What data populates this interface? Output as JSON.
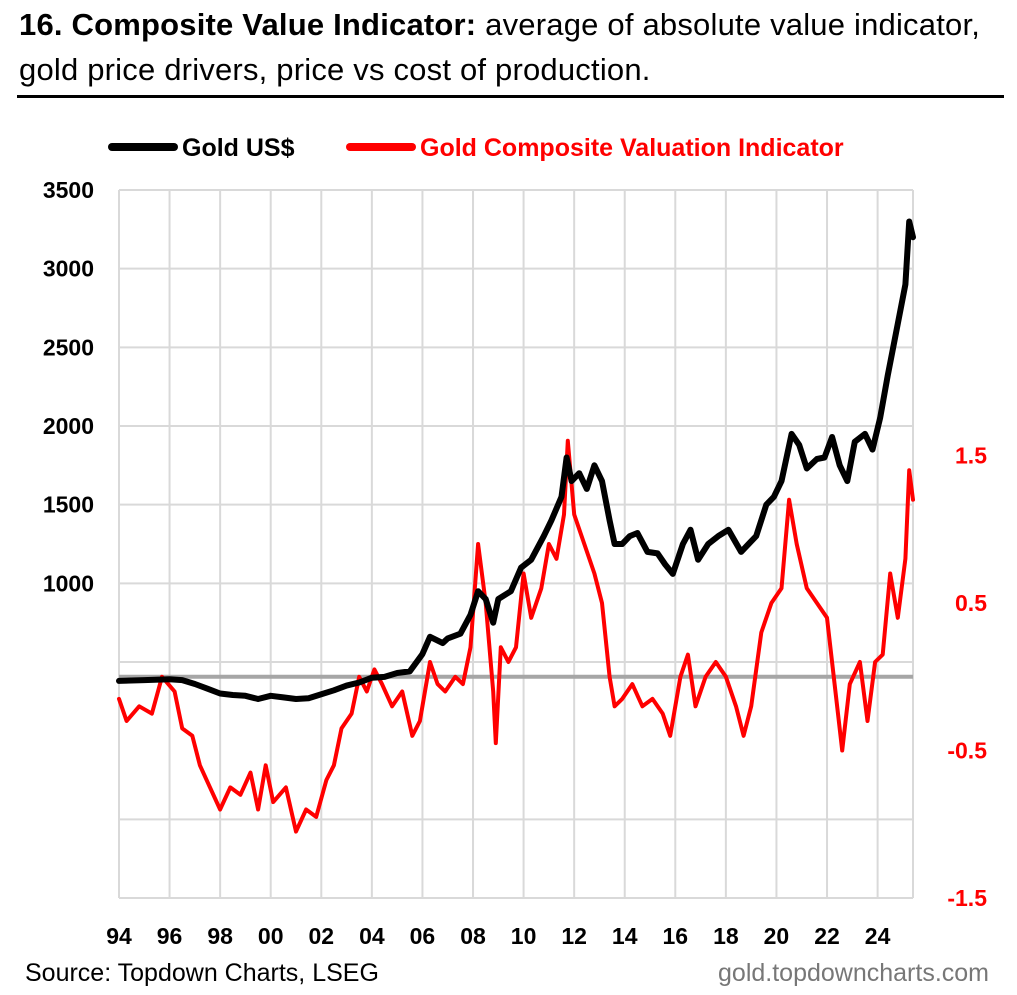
{
  "header": {
    "title_bold": "16. Composite Value Indicator:",
    "title_rest": " average of absolute value indicator, gold price drivers, price vs cost of production."
  },
  "footer": {
    "source": "Source: Topdown Charts, LSEG",
    "url": "gold.topdowncharts.com"
  },
  "colors": {
    "gold": "#000000",
    "indicator": "#ff0000",
    "grid": "#d9d9d9",
    "zero": "#a6a6a6"
  },
  "chart_data": {
    "type": "line",
    "title": "",
    "legend": [
      "Gold US$",
      "Gold Composite Valuation Indicator"
    ],
    "legend_position": "top",
    "x_ticks": [
      "94",
      "96",
      "98",
      "00",
      "02",
      "04",
      "06",
      "08",
      "10",
      "12",
      "14",
      "16",
      "18",
      "20",
      "22",
      "24"
    ],
    "x_range": [
      1994,
      2025.4
    ],
    "left_axis": {
      "ticks": [
        "3500",
        "3000",
        "2500",
        "2000",
        "1500",
        "1000"
      ],
      "range": [
        -1000,
        3500
      ]
    },
    "right_axis": {
      "ticks": [
        "1.5",
        "0.5",
        "-0.5",
        "-1.5"
      ],
      "range": [
        -1.5,
        3.3
      ]
    },
    "series": [
      {
        "name": "Gold US$",
        "axis": "left",
        "points": [
          [
            1994,
            380
          ],
          [
            1995,
            385
          ],
          [
            1996,
            390
          ],
          [
            1996.5,
            385
          ],
          [
            1997,
            360
          ],
          [
            1997.5,
            330
          ],
          [
            1998,
            300
          ],
          [
            1998.5,
            290
          ],
          [
            1999,
            285
          ],
          [
            1999.5,
            265
          ],
          [
            2000,
            285
          ],
          [
            2000.5,
            275
          ],
          [
            2001,
            265
          ],
          [
            2001.5,
            270
          ],
          [
            2002,
            295
          ],
          [
            2002.5,
            320
          ],
          [
            2003,
            350
          ],
          [
            2003.5,
            370
          ],
          [
            2004,
            400
          ],
          [
            2004.5,
            405
          ],
          [
            2005,
            430
          ],
          [
            2005.5,
            440
          ],
          [
            2006,
            550
          ],
          [
            2006.3,
            660
          ],
          [
            2006.8,
            620
          ],
          [
            2007,
            650
          ],
          [
            2007.5,
            680
          ],
          [
            2007.9,
            800
          ],
          [
            2008.2,
            950
          ],
          [
            2008.5,
            900
          ],
          [
            2008.8,
            750
          ],
          [
            2009,
            900
          ],
          [
            2009.5,
            950
          ],
          [
            2009.9,
            1100
          ],
          [
            2010.3,
            1150
          ],
          [
            2010.8,
            1300
          ],
          [
            2011.1,
            1400
          ],
          [
            2011.5,
            1550
          ],
          [
            2011.7,
            1800
          ],
          [
            2011.9,
            1650
          ],
          [
            2012.2,
            1700
          ],
          [
            2012.5,
            1600
          ],
          [
            2012.8,
            1750
          ],
          [
            2013.1,
            1650
          ],
          [
            2013.4,
            1400
          ],
          [
            2013.6,
            1250
          ],
          [
            2013.9,
            1250
          ],
          [
            2014.2,
            1300
          ],
          [
            2014.5,
            1320
          ],
          [
            2014.9,
            1200
          ],
          [
            2015.3,
            1190
          ],
          [
            2015.6,
            1120
          ],
          [
            2015.9,
            1060
          ],
          [
            2016.3,
            1250
          ],
          [
            2016.6,
            1340
          ],
          [
            2016.9,
            1150
          ],
          [
            2017.3,
            1250
          ],
          [
            2017.7,
            1300
          ],
          [
            2018.1,
            1340
          ],
          [
            2018.6,
            1200
          ],
          [
            2018.9,
            1250
          ],
          [
            2019.2,
            1300
          ],
          [
            2019.6,
            1500
          ],
          [
            2019.9,
            1550
          ],
          [
            2020.2,
            1650
          ],
          [
            2020.6,
            1950
          ],
          [
            2020.9,
            1880
          ],
          [
            2021.2,
            1730
          ],
          [
            2021.6,
            1790
          ],
          [
            2021.9,
            1800
          ],
          [
            2022.2,
            1930
          ],
          [
            2022.5,
            1750
          ],
          [
            2022.8,
            1650
          ],
          [
            2023.1,
            1900
          ],
          [
            2023.5,
            1950
          ],
          [
            2023.8,
            1850
          ],
          [
            2024.1,
            2050
          ],
          [
            2024.4,
            2320
          ],
          [
            2024.8,
            2650
          ],
          [
            2025.1,
            2900
          ],
          [
            2025.25,
            3300
          ],
          [
            2025.4,
            3200
          ]
        ]
      },
      {
        "name": "Gold Composite Valuation Indicator",
        "axis": "right",
        "points": [
          [
            1994,
            -0.15
          ],
          [
            1994.3,
            -0.3
          ],
          [
            1994.8,
            -0.2
          ],
          [
            1995.3,
            -0.25
          ],
          [
            1995.7,
            0.0
          ],
          [
            1996.2,
            -0.1
          ],
          [
            1996.5,
            -0.35
          ],
          [
            1996.9,
            -0.4
          ],
          [
            1997.2,
            -0.6
          ],
          [
            1997.6,
            -0.75
          ],
          [
            1998,
            -0.9
          ],
          [
            1998.4,
            -0.75
          ],
          [
            1998.8,
            -0.8
          ],
          [
            1999.2,
            -0.65
          ],
          [
            1999.5,
            -0.9
          ],
          [
            1999.8,
            -0.6
          ],
          [
            2000.1,
            -0.85
          ],
          [
            2000.6,
            -0.75
          ],
          [
            2001.0,
            -1.05
          ],
          [
            2001.4,
            -0.9
          ],
          [
            2001.8,
            -0.95
          ],
          [
            2002.2,
            -0.7
          ],
          [
            2002.5,
            -0.6
          ],
          [
            2002.8,
            -0.35
          ],
          [
            2003.2,
            -0.25
          ],
          [
            2003.5,
            0.0
          ],
          [
            2003.8,
            -0.1
          ],
          [
            2004.1,
            0.05
          ],
          [
            2004.4,
            -0.05
          ],
          [
            2004.8,
            -0.2
          ],
          [
            2005.2,
            -0.1
          ],
          [
            2005.6,
            -0.4
          ],
          [
            2005.9,
            -0.3
          ],
          [
            2006.3,
            0.1
          ],
          [
            2006.6,
            -0.05
          ],
          [
            2006.9,
            -0.1
          ],
          [
            2007.3,
            0.0
          ],
          [
            2007.6,
            -0.05
          ],
          [
            2007.9,
            0.2
          ],
          [
            2008.2,
            0.9
          ],
          [
            2008.5,
            0.5
          ],
          [
            2008.8,
            -0.1
          ],
          [
            2008.9,
            -0.45
          ],
          [
            2009.1,
            0.2
          ],
          [
            2009.4,
            0.1
          ],
          [
            2009.7,
            0.2
          ],
          [
            2010.0,
            0.7
          ],
          [
            2010.3,
            0.4
          ],
          [
            2010.7,
            0.6
          ],
          [
            2011.0,
            0.9
          ],
          [
            2011.3,
            0.8
          ],
          [
            2011.6,
            1.1
          ],
          [
            2011.75,
            1.6
          ],
          [
            2012.0,
            1.1
          ],
          [
            2012.4,
            0.9
          ],
          [
            2012.8,
            0.7
          ],
          [
            2013.1,
            0.5
          ],
          [
            2013.4,
            0.0
          ],
          [
            2013.6,
            -0.2
          ],
          [
            2013.9,
            -0.15
          ],
          [
            2014.3,
            -0.05
          ],
          [
            2014.7,
            -0.2
          ],
          [
            2015.1,
            -0.15
          ],
          [
            2015.5,
            -0.25
          ],
          [
            2015.8,
            -0.4
          ],
          [
            2016.2,
            0.0
          ],
          [
            2016.5,
            0.15
          ],
          [
            2016.8,
            -0.2
          ],
          [
            2017.2,
            0.0
          ],
          [
            2017.6,
            0.1
          ],
          [
            2018.0,
            0.0
          ],
          [
            2018.4,
            -0.2
          ],
          [
            2018.7,
            -0.4
          ],
          [
            2019.0,
            -0.2
          ],
          [
            2019.4,
            0.3
          ],
          [
            2019.8,
            0.5
          ],
          [
            2020.2,
            0.6
          ],
          [
            2020.5,
            1.2
          ],
          [
            2020.8,
            0.9
          ],
          [
            2021.2,
            0.6
          ],
          [
            2021.6,
            0.5
          ],
          [
            2022.0,
            0.4
          ],
          [
            2022.3,
            -0.05
          ],
          [
            2022.6,
            -0.5
          ],
          [
            2022.9,
            -0.05
          ],
          [
            2023.3,
            0.1
          ],
          [
            2023.6,
            -0.3
          ],
          [
            2023.9,
            0.1
          ],
          [
            2024.2,
            0.15
          ],
          [
            2024.5,
            0.7
          ],
          [
            2024.8,
            0.4
          ],
          [
            2025.1,
            0.8
          ],
          [
            2025.25,
            1.4
          ],
          [
            2025.4,
            1.2
          ]
        ]
      }
    ]
  }
}
